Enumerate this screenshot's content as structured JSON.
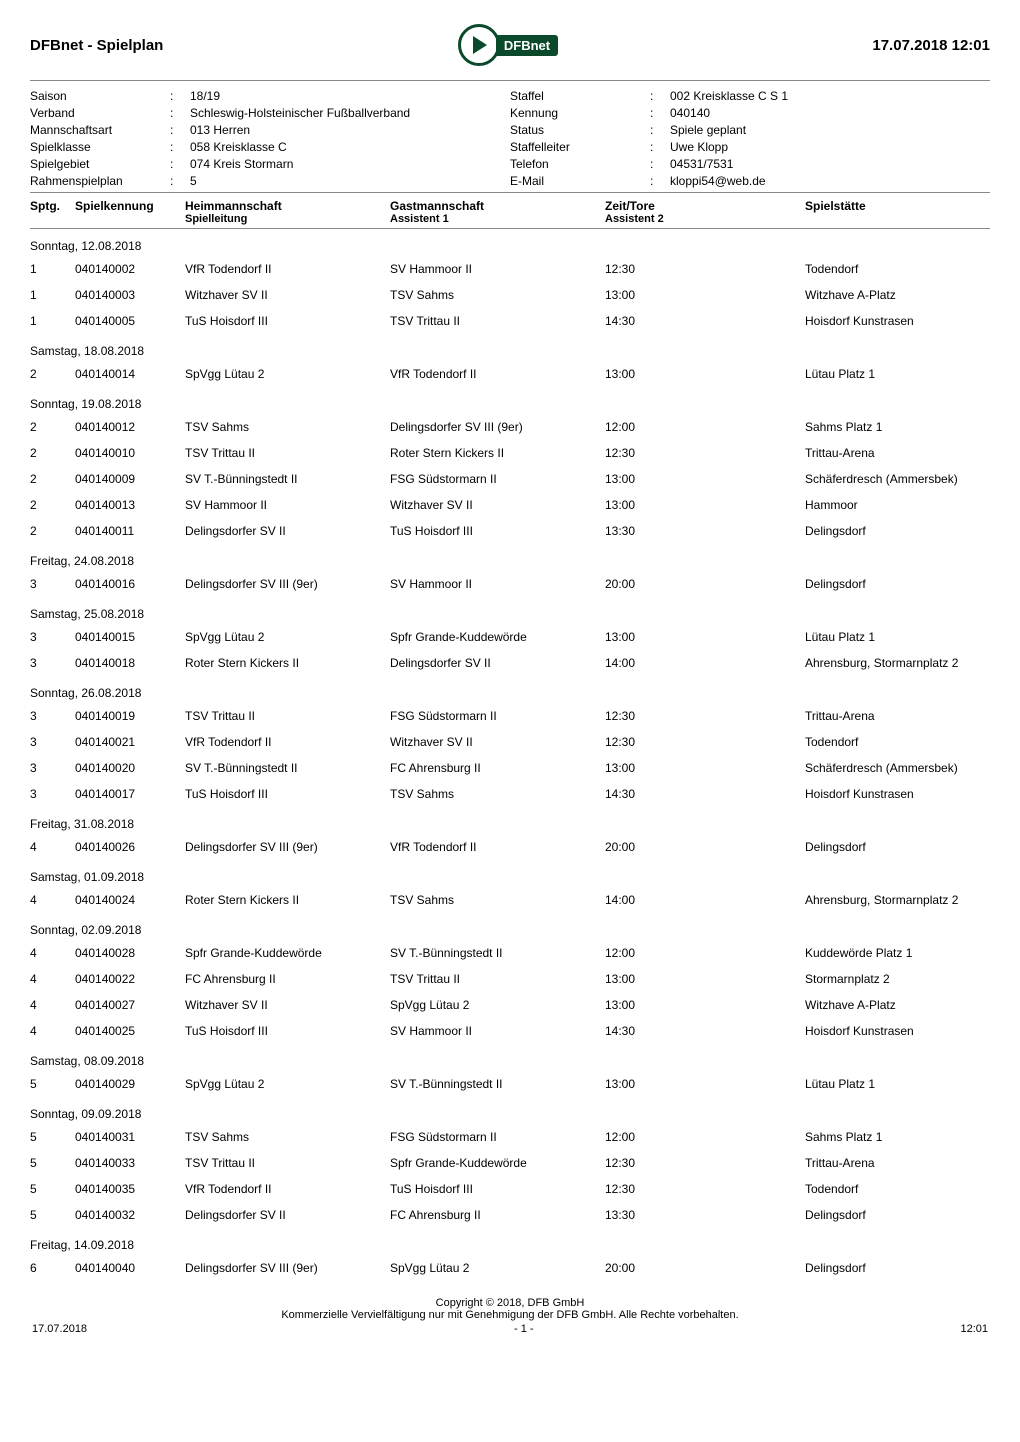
{
  "header": {
    "title_left": "DFBnet - Spielplan",
    "title_right": "17.07.2018 12:01",
    "logo_text": "DFBnet"
  },
  "meta": {
    "left": [
      {
        "label": "Saison",
        "value": "18/19"
      },
      {
        "label": "Verband",
        "value": "Schleswig-Holsteinischer Fußballverband"
      },
      {
        "label": "Mannschaftsart",
        "value": "013 Herren"
      },
      {
        "label": "Spielklasse",
        "value": "058 Kreisklasse C"
      },
      {
        "label": "Spielgebiet",
        "value": "074 Kreis Stormarn"
      },
      {
        "label": "Rahmenspielplan",
        "value": "5"
      }
    ],
    "right": [
      {
        "label": "Staffel",
        "value": "002 Kreisklasse C S 1"
      },
      {
        "label": "Kennung",
        "value": "040140"
      },
      {
        "label": "Status",
        "value": "Spiele geplant"
      },
      {
        "label": "Staffelleiter",
        "value": "Uwe Klopp"
      },
      {
        "label": "Telefon",
        "value": "04531/7531"
      },
      {
        "label": "E-Mail",
        "value": "kloppi54@web.de"
      }
    ]
  },
  "columns": {
    "sptg": "Sptg.",
    "kenn": "Spielkennung",
    "heim1": "Heimmannschaft",
    "heim2": "Spielleitung",
    "gast1": "Gastmannschaft",
    "gast2": "Assistent 1",
    "zeit1": "Zeit/Tore",
    "zeit2": "Assistent 2",
    "ort": "Spielstätte"
  },
  "groups": [
    {
      "date": "Sonntag, 12.08.2018",
      "rows": [
        {
          "sptg": "1",
          "kenn": "040140002",
          "heim": "VfR Todendorf II",
          "gast": "SV Hammoor II",
          "zeit": "12:30",
          "ort": "Todendorf"
        },
        {
          "sptg": "1",
          "kenn": "040140003",
          "heim": "Witzhaver SV II",
          "gast": "TSV Sahms",
          "zeit": "13:00",
          "ort": "Witzhave A-Platz"
        },
        {
          "sptg": "1",
          "kenn": "040140005",
          "heim": "TuS Hoisdorf III",
          "gast": "TSV Trittau II",
          "zeit": "14:30",
          "ort": "Hoisdorf Kunstrasen"
        }
      ]
    },
    {
      "date": "Samstag, 18.08.2018",
      "rows": [
        {
          "sptg": "2",
          "kenn": "040140014",
          "heim": "SpVgg Lütau 2",
          "gast": "VfR Todendorf II",
          "zeit": "13:00",
          "ort": "Lütau Platz 1"
        }
      ]
    },
    {
      "date": "Sonntag, 19.08.2018",
      "rows": [
        {
          "sptg": "2",
          "kenn": "040140012",
          "heim": "TSV Sahms",
          "gast": "Delingsdorfer SV III (9er)",
          "zeit": "12:00",
          "ort": "Sahms Platz 1"
        },
        {
          "sptg": "2",
          "kenn": "040140010",
          "heim": "TSV Trittau II",
          "gast": "Roter Stern Kickers II",
          "zeit": "12:30",
          "ort": "Trittau-Arena"
        },
        {
          "sptg": "2",
          "kenn": "040140009",
          "heim": "SV T.-Bünningstedt II",
          "gast": "FSG Südstormarn II",
          "zeit": "13:00",
          "ort": "Schäferdresch (Ammersbek)"
        },
        {
          "sptg": "2",
          "kenn": "040140013",
          "heim": "SV Hammoor II",
          "gast": "Witzhaver SV II",
          "zeit": "13:00",
          "ort": "Hammoor"
        },
        {
          "sptg": "2",
          "kenn": "040140011",
          "heim": "Delingsdorfer SV II",
          "gast": "TuS Hoisdorf III",
          "zeit": "13:30",
          "ort": "Delingsdorf"
        }
      ]
    },
    {
      "date": "Freitag, 24.08.2018",
      "rows": [
        {
          "sptg": "3",
          "kenn": "040140016",
          "heim": "Delingsdorfer SV III (9er)",
          "gast": "SV Hammoor II",
          "zeit": "20:00",
          "ort": "Delingsdorf"
        }
      ]
    },
    {
      "date": "Samstag, 25.08.2018",
      "rows": [
        {
          "sptg": "3",
          "kenn": "040140015",
          "heim": "SpVgg Lütau 2",
          "gast": "Spfr Grande-Kuddewörde",
          "zeit": "13:00",
          "ort": "Lütau Platz 1"
        },
        {
          "sptg": "3",
          "kenn": "040140018",
          "heim": "Roter Stern Kickers II",
          "gast": "Delingsdorfer SV II",
          "zeit": "14:00",
          "ort": "Ahrensburg, Stormarnplatz 2"
        }
      ]
    },
    {
      "date": "Sonntag, 26.08.2018",
      "rows": [
        {
          "sptg": "3",
          "kenn": "040140019",
          "heim": "TSV Trittau II",
          "gast": "FSG Südstormarn II",
          "zeit": "12:30",
          "ort": "Trittau-Arena"
        },
        {
          "sptg": "3",
          "kenn": "040140021",
          "heim": "VfR Todendorf II",
          "gast": "Witzhaver SV II",
          "zeit": "12:30",
          "ort": "Todendorf"
        },
        {
          "sptg": "3",
          "kenn": "040140020",
          "heim": "SV T.-Bünningstedt II",
          "gast": "FC Ahrensburg II",
          "zeit": "13:00",
          "ort": "Schäferdresch (Ammersbek)"
        },
        {
          "sptg": "3",
          "kenn": "040140017",
          "heim": "TuS Hoisdorf III",
          "gast": "TSV Sahms",
          "zeit": "14:30",
          "ort": "Hoisdorf Kunstrasen"
        }
      ]
    },
    {
      "date": "Freitag, 31.08.2018",
      "rows": [
        {
          "sptg": "4",
          "kenn": "040140026",
          "heim": "Delingsdorfer SV III (9er)",
          "gast": "VfR Todendorf II",
          "zeit": "20:00",
          "ort": "Delingsdorf"
        }
      ]
    },
    {
      "date": "Samstag, 01.09.2018",
      "rows": [
        {
          "sptg": "4",
          "kenn": "040140024",
          "heim": "Roter Stern Kickers II",
          "gast": "TSV Sahms",
          "zeit": "14:00",
          "ort": "Ahrensburg, Stormarnplatz 2"
        }
      ]
    },
    {
      "date": "Sonntag, 02.09.2018",
      "rows": [
        {
          "sptg": "4",
          "kenn": "040140028",
          "heim": "Spfr Grande-Kuddewörde",
          "gast": "SV T.-Bünningstedt II",
          "zeit": "12:00",
          "ort": "Kuddewörde Platz 1"
        },
        {
          "sptg": "4",
          "kenn": "040140022",
          "heim": "FC Ahrensburg II",
          "gast": "TSV Trittau II",
          "zeit": "13:00",
          "ort": "Stormarnplatz 2"
        },
        {
          "sptg": "4",
          "kenn": "040140027",
          "heim": "Witzhaver SV II",
          "gast": "SpVgg Lütau 2",
          "zeit": "13:00",
          "ort": "Witzhave A-Platz"
        },
        {
          "sptg": "4",
          "kenn": "040140025",
          "heim": "TuS Hoisdorf III",
          "gast": "SV Hammoor II",
          "zeit": "14:30",
          "ort": "Hoisdorf Kunstrasen"
        }
      ]
    },
    {
      "date": "Samstag, 08.09.2018",
      "rows": [
        {
          "sptg": "5",
          "kenn": "040140029",
          "heim": "SpVgg Lütau 2",
          "gast": "SV T.-Bünningstedt II",
          "zeit": "13:00",
          "ort": "Lütau Platz 1"
        }
      ]
    },
    {
      "date": "Sonntag, 09.09.2018",
      "rows": [
        {
          "sptg": "5",
          "kenn": "040140031",
          "heim": "TSV Sahms",
          "gast": "FSG Südstormarn II",
          "zeit": "12:00",
          "ort": "Sahms Platz 1"
        },
        {
          "sptg": "5",
          "kenn": "040140033",
          "heim": "TSV Trittau II",
          "gast": "Spfr Grande-Kuddewörde",
          "zeit": "12:30",
          "ort": "Trittau-Arena"
        },
        {
          "sptg": "5",
          "kenn": "040140035",
          "heim": "VfR Todendorf II",
          "gast": "TuS Hoisdorf III",
          "zeit": "12:30",
          "ort": "Todendorf"
        },
        {
          "sptg": "5",
          "kenn": "040140032",
          "heim": "Delingsdorfer SV II",
          "gast": "FC Ahrensburg II",
          "zeit": "13:30",
          "ort": "Delingsdorf"
        }
      ]
    },
    {
      "date": "Freitag, 14.09.2018",
      "rows": [
        {
          "sptg": "6",
          "kenn": "040140040",
          "heim": "Delingsdorfer SV III (9er)",
          "gast": "SpVgg Lütau 2",
          "zeit": "20:00",
          "ort": "Delingsdorf"
        }
      ]
    }
  ],
  "footer": {
    "copyright": "Copyright © 2018,  DFB GmbH",
    "notice": "Kommerzielle Vervielfältigung nur mit Genehmigung der DFB GmbH. Alle Rechte vorbehalten.",
    "left": "17.07.2018",
    "center": "- 1 -",
    "right": "12:01"
  }
}
